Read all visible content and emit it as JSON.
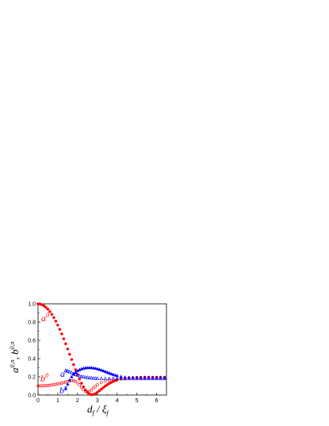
{
  "chart_data": {
    "type": "scatter",
    "xlabel": "d_f / ξ_f",
    "ylabel": "a^{0,π}, b^{0,π}",
    "xlim": [
      0,
      6.5
    ],
    "ylim": [
      0,
      1.0
    ],
    "x_ticks": [
      "0",
      "1",
      "2",
      "3",
      "4",
      "5",
      "6"
    ],
    "y_ticks": [
      "0.0",
      "0.2",
      "0.4",
      "0.6",
      "0.8",
      "1.0"
    ],
    "grid": false,
    "legend": "none",
    "series": [
      {
        "key": "a0",
        "label_base": "a",
        "label_sup": "0",
        "color": "#ff0000",
        "marker": "filled-circle",
        "x": [
          0.0,
          0.1,
          0.2,
          0.3,
          0.4,
          0.5,
          0.6,
          0.7,
          0.8,
          0.9,
          1.0,
          1.1,
          1.2,
          1.3,
          1.4,
          1.5,
          1.6,
          1.7,
          1.8,
          1.9,
          2.0,
          2.1,
          2.2,
          2.3,
          2.4,
          2.5,
          2.6,
          2.7,
          2.8,
          2.9,
          3.0,
          3.1,
          3.2,
          3.3,
          3.4,
          3.5,
          3.6,
          3.7,
          3.8,
          3.9,
          4.0,
          4.2,
          4.4,
          4.6,
          4.8,
          5.0,
          5.2,
          5.4,
          5.6,
          5.8,
          6.0,
          6.2,
          6.4
        ],
        "y": [
          1.0,
          0.998,
          0.99,
          0.978,
          0.961,
          0.94,
          0.914,
          0.884,
          0.849,
          0.81,
          0.767,
          0.72,
          0.67,
          0.617,
          0.562,
          0.505,
          0.447,
          0.39,
          0.333,
          0.278,
          0.225,
          0.175,
          0.13,
          0.09,
          0.056,
          0.03,
          0.012,
          0.004,
          0.006,
          0.015,
          0.03,
          0.047,
          0.064,
          0.082,
          0.098,
          0.113,
          0.127,
          0.139,
          0.149,
          0.158,
          0.166,
          0.176,
          0.184,
          0.189,
          0.192,
          0.194,
          0.195,
          0.196,
          0.196,
          0.196,
          0.196,
          0.196,
          0.196
        ]
      },
      {
        "key": "b0",
        "label_base": "b",
        "label_sup": "0",
        "color": "#ff0000",
        "marker": "open-circle",
        "x": [
          0.0,
          0.1,
          0.2,
          0.3,
          0.4,
          0.5,
          0.6,
          0.7,
          0.8,
          0.9,
          1.0,
          1.1,
          1.2,
          1.3,
          1.4,
          1.5,
          1.6,
          1.7,
          1.8,
          1.9,
          2.0,
          2.1,
          2.2,
          2.3,
          2.4,
          2.5,
          2.6,
          2.7,
          2.8,
          2.9,
          3.0,
          3.2,
          3.4,
          3.6,
          3.8,
          4.0,
          4.2,
          4.4,
          4.6,
          4.8,
          5.0,
          5.2,
          5.4,
          5.6,
          5.8,
          6.0,
          6.2,
          6.4
        ],
        "y": [
          0.1,
          0.1,
          0.101,
          0.102,
          0.103,
          0.105,
          0.107,
          0.11,
          0.113,
          0.117,
          0.121,
          0.126,
          0.131,
          0.137,
          0.143,
          0.15,
          0.155,
          0.158,
          0.157,
          0.15,
          0.135,
          0.112,
          0.085,
          0.06,
          0.042,
          0.035,
          0.04,
          0.055,
          0.075,
          0.095,
          0.112,
          0.138,
          0.155,
          0.166,
          0.172,
          0.176,
          0.178,
          0.179,
          0.18,
          0.18,
          0.18,
          0.18,
          0.18,
          0.18,
          0.18,
          0.18,
          0.18,
          0.18
        ]
      },
      {
        "key": "api",
        "label_base": "a",
        "label_sup": "π",
        "color": "#0000ff",
        "marker": "filled-triangle",
        "x": [
          1.4,
          1.5,
          1.6,
          1.7,
          1.8,
          1.9,
          2.0,
          2.1,
          2.2,
          2.3,
          2.4,
          2.5,
          2.6,
          2.7,
          2.8,
          2.9,
          3.0,
          3.1,
          3.2,
          3.3,
          3.4,
          3.5,
          3.6,
          3.7,
          3.8,
          3.9,
          4.0,
          4.2,
          4.4,
          4.6,
          4.8,
          5.0,
          5.2,
          5.4,
          5.6,
          5.8,
          6.0,
          6.2,
          6.4
        ],
        "y": [
          0.07,
          0.12,
          0.165,
          0.2,
          0.228,
          0.25,
          0.266,
          0.278,
          0.287,
          0.294,
          0.298,
          0.3,
          0.301,
          0.3,
          0.297,
          0.293,
          0.288,
          0.282,
          0.275,
          0.267,
          0.259,
          0.25,
          0.242,
          0.234,
          0.226,
          0.219,
          0.213,
          0.203,
          0.197,
          0.193,
          0.191,
          0.19,
          0.19,
          0.19,
          0.19,
          0.19,
          0.19,
          0.19,
          0.19
        ]
      },
      {
        "key": "bpi",
        "label_base": "b",
        "label_sup": "π",
        "color": "#0000ff",
        "marker": "open-triangle",
        "x": [
          1.4,
          1.5,
          1.6,
          1.7,
          1.8,
          1.9,
          2.0,
          2.1,
          2.2,
          2.3,
          2.4,
          2.5,
          2.6,
          2.7,
          2.8,
          2.9,
          3.0,
          3.2,
          3.4,
          3.6,
          3.8,
          4.0,
          4.2,
          4.4,
          4.6,
          4.8,
          5.0,
          5.2,
          5.4,
          5.6,
          5.8,
          6.0,
          6.2,
          6.4
        ],
        "y": [
          0.27,
          0.265,
          0.255,
          0.245,
          0.235,
          0.226,
          0.218,
          0.211,
          0.205,
          0.2,
          0.196,
          0.193,
          0.19,
          0.188,
          0.186,
          0.184,
          0.183,
          0.181,
          0.18,
          0.18,
          0.18,
          0.18,
          0.18,
          0.18,
          0.18,
          0.18,
          0.18,
          0.18,
          0.18,
          0.18,
          0.18,
          0.18,
          0.18,
          0.18
        ]
      }
    ]
  }
}
